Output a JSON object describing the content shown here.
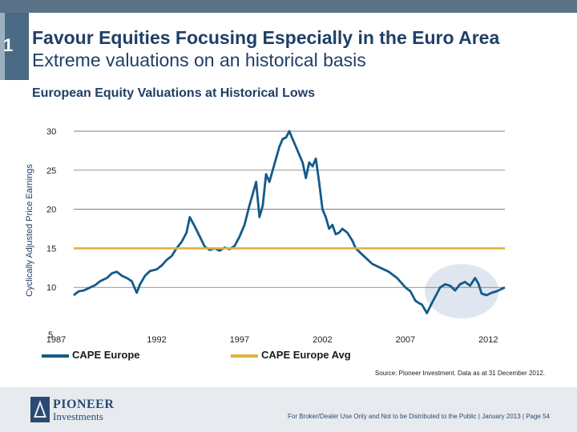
{
  "header": {
    "section_number": "1",
    "title": "Favour Equities Focusing Especially in the Euro Area",
    "subtitle": "Extreme valuations on an historical basis"
  },
  "chart_title": "European Equity Valuations at Historical Lows",
  "chart_data": {
    "type": "line",
    "title": "European Equity Valuations at Historical Lows",
    "ylabel": "Cyclically Adjusted Price Earnings",
    "xlabel": "",
    "ylim": [
      5,
      30
    ],
    "xlim": [
      1987,
      2013
    ],
    "yticks": [
      "5",
      "10",
      "15",
      "20",
      "25",
      "30"
    ],
    "xticks": [
      "1987",
      "1992",
      "1997",
      "2002",
      "2007",
      "2012"
    ],
    "grid": true,
    "series": [
      {
        "name": "CAPE Europe",
        "color": "#135a8a",
        "x": [
          1987.0,
          1987.3,
          1987.6,
          1987.8,
          1988.0,
          1988.3,
          1988.6,
          1989.0,
          1989.3,
          1989.6,
          1989.9,
          1990.2,
          1990.5,
          1990.8,
          1991.0,
          1991.3,
          1991.6,
          1992.0,
          1992.3,
          1992.6,
          1992.9,
          1993.2,
          1993.5,
          1993.8,
          1994.0,
          1994.3,
          1994.6,
          1994.9,
          1995.2,
          1995.5,
          1995.8,
          1996.1,
          1996.4,
          1996.7,
          1997.0,
          1997.3,
          1997.6,
          1997.8,
          1998.0,
          1998.2,
          1998.4,
          1998.6,
          1998.8,
          1999.0,
          1999.2,
          1999.4,
          1999.6,
          1999.8,
          2000.0,
          2000.2,
          2000.4,
          2000.6,
          2000.8,
          2001.0,
          2001.2,
          2001.4,
          2001.6,
          2001.8,
          2002.0,
          2002.2,
          2002.4,
          2002.6,
          2002.8,
          2003.0,
          2003.2,
          2003.5,
          2003.8,
          2004.0,
          2004.5,
          2005.0,
          2005.5,
          2006.0,
          2006.5,
          2007.0,
          2007.3,
          2007.6,
          2007.8,
          2008.0,
          2008.3,
          2008.6,
          2008.9,
          2009.1,
          2009.4,
          2009.7,
          2010.0,
          2010.3,
          2010.6,
          2010.9,
          2011.2,
          2011.4,
          2011.6,
          2011.9,
          2012.2,
          2012.5,
          2012.8,
          2013.0
        ],
        "values": [
          9.0,
          9.5,
          9.6,
          9.8,
          10.0,
          10.3,
          10.8,
          11.2,
          11.8,
          12.0,
          11.5,
          11.2,
          10.8,
          9.3,
          10.4,
          11.5,
          12.1,
          12.3,
          12.8,
          13.5,
          14.0,
          15.0,
          15.8,
          17.0,
          19.0,
          17.8,
          16.5,
          15.2,
          14.8,
          15.0,
          14.7,
          15.1,
          14.9,
          15.3,
          16.5,
          18.0,
          20.5,
          22.0,
          23.5,
          19.0,
          20.5,
          24.5,
          23.5,
          25.0,
          26.5,
          28.0,
          29.0,
          29.2,
          30.0,
          29.0,
          28.0,
          27.0,
          26.0,
          24.0,
          26.0,
          25.5,
          26.5,
          23.5,
          20.0,
          19.0,
          17.5,
          18.0,
          16.8,
          17.0,
          17.5,
          17.0,
          16.0,
          15.0,
          14.0,
          13.0,
          12.5,
          12.0,
          11.2,
          10.0,
          9.5,
          8.3,
          8.0,
          7.8,
          6.7,
          8.0,
          9.2,
          10.0,
          10.4,
          10.2,
          9.6,
          10.4,
          10.7,
          10.2,
          11.2,
          10.5,
          9.2,
          9.0,
          9.3,
          9.5,
          9.8,
          10.0
        ]
      },
      {
        "name": "CAPE Europe Avg",
        "color": "#e0b23a",
        "x": [
          1987.0,
          2013.0
        ],
        "values": [
          15.0,
          15.0
        ]
      }
    ],
    "annotations": [
      "highlight ellipse around 2008-2013"
    ]
  },
  "legend": {
    "item1": "CAPE Europe",
    "item2": "CAPE Europe Avg"
  },
  "source": "Source: Pioneer Investment. Data as at 31 December 2012.",
  "footer": {
    "logo_line1": "PIONEER",
    "logo_line2": "Investments",
    "disclaimer": "For Broker/Dealer Use Only and Not to be Distributed to the Public | January 2013 | Page 54"
  }
}
